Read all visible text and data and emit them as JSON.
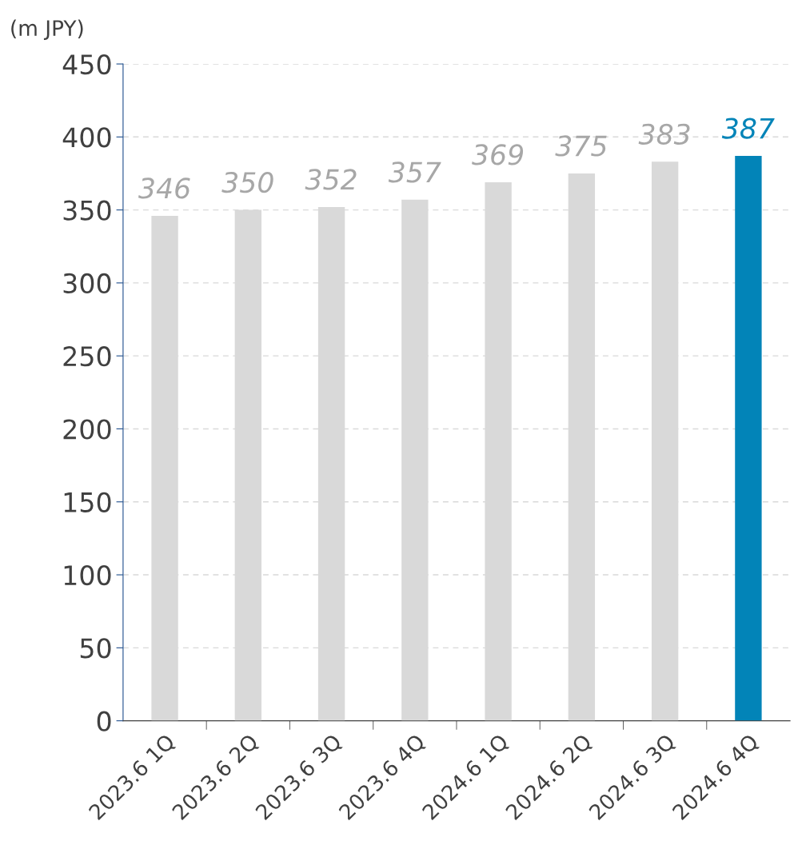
{
  "chart_data": {
    "type": "bar",
    "ylabel": "(m JPY)",
    "categories": [
      "2023.6 1Q",
      "2023.6 2Q",
      "2023.6 3Q",
      "2023.6 4Q",
      "2024.6 1Q",
      "2024.6 2Q",
      "2024.6 3Q",
      "2024.6 4Q"
    ],
    "values": [
      346,
      350,
      352,
      357,
      369,
      375,
      383,
      387
    ],
    "colors": [
      "#d9d9d9",
      "#d9d9d9",
      "#d9d9d9",
      "#d9d9d9",
      "#d9d9d9",
      "#d9d9d9",
      "#d9d9d9",
      "#0284b8"
    ],
    "ylim": [
      0,
      450
    ],
    "yticks": [
      0,
      50,
      100,
      150,
      200,
      250,
      300,
      350,
      400,
      450
    ],
    "grid": "y",
    "data_labels": true
  }
}
